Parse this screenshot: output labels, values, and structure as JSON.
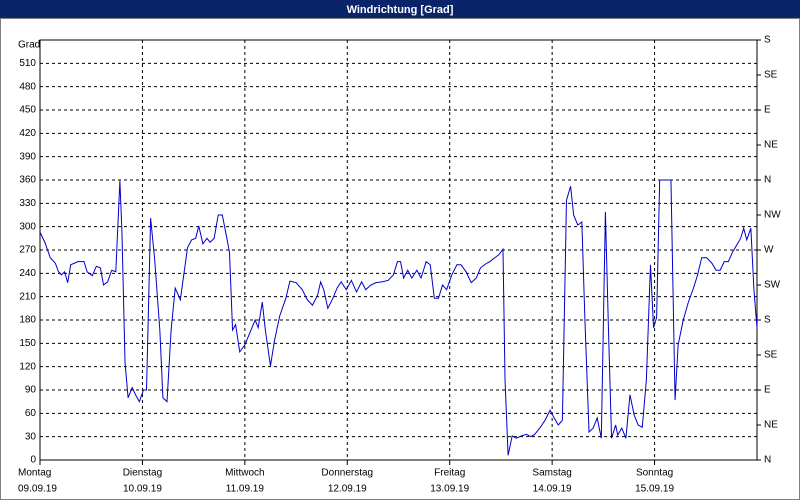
{
  "chart_data": {
    "type": "line",
    "title": "Windrichtung [Grad]",
    "y_label": "Grad",
    "x": [
      0,
      0.05,
      0.1,
      0.15,
      0.18,
      0.21,
      0.24,
      0.27,
      0.3,
      0.37,
      0.43,
      0.46,
      0.51,
      0.55,
      0.59,
      0.62,
      0.66,
      0.7,
      0.74,
      0.78,
      0.8,
      0.83,
      0.86,
      0.9,
      0.94,
      0.97,
      1.01,
      1.04,
      1.08,
      1.12,
      1.17,
      1.2,
      1.24,
      1.28,
      1.32,
      1.37,
      1.41,
      1.44,
      1.48,
      1.52,
      1.55,
      1.59,
      1.63,
      1.66,
      1.7,
      1.74,
      1.78,
      1.82,
      1.85,
      1.88,
      1.91,
      1.95,
      2.0,
      2.06,
      2.1,
      2.13,
      2.17,
      2.2,
      2.25,
      2.29,
      2.34,
      2.4,
      2.44,
      2.5,
      2.56,
      2.61,
      2.66,
      2.71,
      2.74,
      2.77,
      2.81,
      2.86,
      2.9,
      2.94,
      2.99,
      3.04,
      3.09,
      3.14,
      3.18,
      3.23,
      3.28,
      3.34,
      3.4,
      3.45,
      3.49,
      3.52,
      3.55,
      3.59,
      3.63,
      3.68,
      3.72,
      3.77,
      3.81,
      3.85,
      3.89,
      3.93,
      3.97,
      4.02,
      4.07,
      4.11,
      4.16,
      4.21,
      4.26,
      4.3,
      4.35,
      4.39,
      4.44,
      4.48,
      4.52,
      4.54,
      4.57,
      4.61,
      4.65,
      4.7,
      4.75,
      4.79,
      4.83,
      4.88,
      4.93,
      4.98,
      5.02,
      5.06,
      5.1,
      5.14,
      5.18,
      5.21,
      5.25,
      5.29,
      5.32,
      5.36,
      5.4,
      5.44,
      5.48,
      5.52,
      5.55,
      5.58,
      5.62,
      5.64,
      5.68,
      5.72,
      5.76,
      5.8,
      5.84,
      5.88,
      5.92,
      5.96,
      5.99,
      6.02,
      6.05,
      6.09,
      6.13,
      6.16,
      6.2,
      6.23,
      6.28,
      6.33,
      6.38,
      6.42,
      6.46,
      6.51,
      6.56,
      6.6,
      6.64,
      6.68,
      6.72,
      6.76,
      6.8,
      6.84,
      6.87,
      6.9,
      6.94,
      6.97,
      7.0
    ],
    "series": [
      {
        "name": "Windrichtung",
        "color": "#0000cc",
        "values": [
          293,
          279,
          260,
          253,
          242,
          238,
          242,
          228,
          251,
          255,
          255,
          242,
          237,
          249,
          247,
          225,
          229,
          244,
          242,
          359,
          293,
          126,
          80,
          93,
          82,
          75,
          90,
          90,
          311,
          257,
          167,
          80,
          75,
          167,
          221,
          206,
          244,
          273,
          283,
          285,
          301,
          278,
          285,
          280,
          285,
          315,
          315,
          288,
          267,
          167,
          174,
          139,
          148,
          167,
          180,
          170,
          203,
          167,
          121,
          154,
          185,
          208,
          230,
          228,
          219,
          206,
          199,
          212,
          229,
          219,
          195,
          208,
          221,
          229,
          219,
          231,
          216,
          229,
          219,
          225,
          228,
          229,
          231,
          238,
          255,
          255,
          234,
          244,
          234,
          244,
          234,
          255,
          251,
          208,
          208,
          225,
          219,
          238,
          251,
          251,
          242,
          228,
          234,
          247,
          252,
          255,
          260,
          264,
          271,
          103,
          6,
          31,
          28,
          31,
          33,
          30,
          33,
          41,
          51,
          64,
          54,
          45,
          51,
          334,
          352,
          315,
          302,
          306,
          180,
          36,
          41,
          54,
          28,
          319,
          167,
          28,
          45,
          32,
          41,
          28,
          84,
          58,
          45,
          42,
          103,
          251,
          170,
          183,
          360,
          360,
          360,
          360,
          77,
          148,
          180,
          203,
          221,
          238,
          260,
          260,
          253,
          244,
          244,
          255,
          255,
          267,
          276,
          285,
          298,
          283,
          298,
          219,
          170
        ]
      }
    ],
    "xlim": [
      0,
      7
    ],
    "xticks": [
      {
        "value": 0,
        "label": "Montag",
        "date": "09.09.19"
      },
      {
        "value": 1,
        "label": "Dienstag",
        "date": "10.09.19"
      },
      {
        "value": 2,
        "label": "Mittwoch",
        "date": "11.09.19"
      },
      {
        "value": 3,
        "label": "Donnerstag",
        "date": "12.09.19"
      },
      {
        "value": 4,
        "label": "Freitag",
        "date": "13.09.19"
      },
      {
        "value": 5,
        "label": "Samstag",
        "date": "14.09.19"
      },
      {
        "value": 6,
        "label": "Sonntag",
        "date": "15.09.19"
      }
    ],
    "ylim": [
      0,
      540
    ],
    "yticks": [
      0,
      30,
      60,
      90,
      120,
      150,
      180,
      210,
      240,
      270,
      300,
      330,
      360,
      390,
      420,
      450,
      480,
      510
    ],
    "y2lim": [
      0,
      540
    ],
    "y2ticks": [
      {
        "value": 0,
        "label": "N"
      },
      {
        "value": 45,
        "label": "NE"
      },
      {
        "value": 90,
        "label": "E"
      },
      {
        "value": 135,
        "label": "SE"
      },
      {
        "value": 180,
        "label": "S"
      },
      {
        "value": 225,
        "label": "SW"
      },
      {
        "value": 270,
        "label": "W"
      },
      {
        "value": 315,
        "label": "NW"
      },
      {
        "value": 360,
        "label": "N"
      },
      {
        "value": 405,
        "label": "NE"
      },
      {
        "value": 450,
        "label": "E"
      },
      {
        "value": 495,
        "label": "SE"
      },
      {
        "value": 540,
        "label": "S"
      }
    ],
    "grid": true
  }
}
